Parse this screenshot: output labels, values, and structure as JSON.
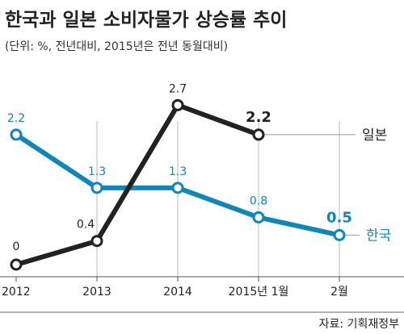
{
  "chart_data": {
    "type": "line",
    "title": "한국과 일본 소비자물가 상승률 추이",
    "subtitle": "(단위: %, 전년대비, 2015년은 전년 동월대비)",
    "categories": [
      "2012",
      "2013",
      "2014",
      "2015년 1월",
      "2월"
    ],
    "series": [
      {
        "name": "일본",
        "color": "#222222",
        "values": [
          0,
          0.4,
          2.7,
          2.2,
          null
        ],
        "labels": [
          "0",
          "0.4",
          "2.7",
          "2.2",
          ""
        ]
      },
      {
        "name": "한국",
        "color": "#0f87b8",
        "values": [
          2.2,
          1.3,
          1.3,
          0.8,
          0.5
        ],
        "labels": [
          "2.2",
          "1.3",
          "1.3",
          "0.8",
          "0.5"
        ]
      }
    ],
    "ylim": [
      0,
      2.8
    ],
    "grid": false,
    "legend": "inline-right"
  },
  "source": "자료: 기획재정부"
}
